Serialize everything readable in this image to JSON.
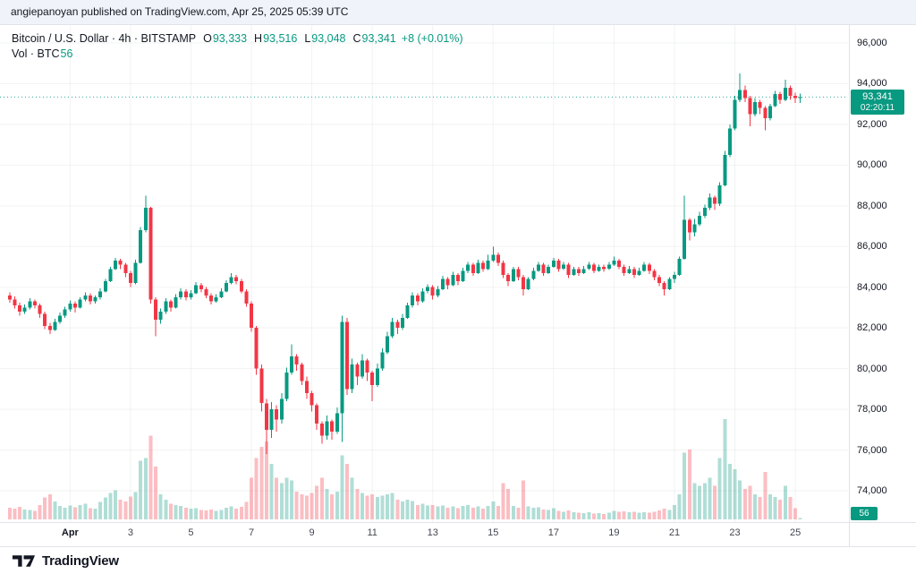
{
  "attribution": {
    "text": "angiepanoyan published on TradingView.com, Apr 25, 2025 05:39 UTC"
  },
  "legend": {
    "title": "Bitcoin / U.S. Dollar · 4h · BITSTAMP",
    "o_label": "O",
    "o_value": "93,333",
    "h_label": "H",
    "h_value": "93,516",
    "l_label": "L",
    "l_value": "93,048",
    "c_label": "C",
    "c_value": "93,341",
    "change": "+8 (+0.01%)",
    "vol_label": "Vol · BTC",
    "vol_value": "56"
  },
  "price_badge": {
    "price": "93,341",
    "countdown": "02:20:11"
  },
  "volume_badge": {
    "value": "56"
  },
  "footer": {
    "brand": "TradingView"
  },
  "colors": {
    "up": "#089981",
    "down": "#f23645",
    "vol_up": "rgba(8,153,129,0.32)",
    "vol_down": "rgba(242,54,69,0.32)",
    "grid": "rgba(42,46,57,0.06)",
    "axis_line": "#e0e3eb",
    "badge": "#089981",
    "attribution_bg": "#f0f3fa"
  },
  "chart_data": {
    "type": "candlestick",
    "title": "Bitcoin / U.S. Dollar",
    "exchange": "BITSTAMP",
    "interval": "4h",
    "price_unit": "USD",
    "volume_unit": "BTC",
    "start_date": "2025-03-30",
    "step_hours": 4,
    "last_candle": {
      "open": 93333,
      "high": 93516,
      "low": 93048,
      "close": 93341,
      "change": 8,
      "change_pct": 0.01,
      "volume": 56
    },
    "price_line_value": 93341,
    "y_axis": {
      "visible_min": 73500,
      "visible_max": 96800,
      "ticks": [
        {
          "label": "96,000",
          "value": 96000
        },
        {
          "label": "94,000",
          "value": 94000
        },
        {
          "label": "92,000",
          "value": 92000
        },
        {
          "label": "90,000",
          "value": 90000
        },
        {
          "label": "88,000",
          "value": 88000
        },
        {
          "label": "86,000",
          "value": 86000
        },
        {
          "label": "84,000",
          "value": 84000
        },
        {
          "label": "82,000",
          "value": 82000
        },
        {
          "label": "80,000",
          "value": 80000
        },
        {
          "label": "78,000",
          "value": 78000
        },
        {
          "label": "76,000",
          "value": 76000
        },
        {
          "label": "74,000",
          "value": 74000
        }
      ]
    },
    "x_axis": {
      "ticks": [
        {
          "label": "Apr",
          "index": 12,
          "month": true
        },
        {
          "label": "3",
          "index": 24
        },
        {
          "label": "5",
          "index": 36
        },
        {
          "label": "7",
          "index": 48
        },
        {
          "label": "9",
          "index": 60
        },
        {
          "label": "11",
          "index": 72
        },
        {
          "label": "13",
          "index": 84
        },
        {
          "label": "15",
          "index": 96
        },
        {
          "label": "17",
          "index": 108
        },
        {
          "label": "19",
          "index": 120
        },
        {
          "label": "21",
          "index": 132
        },
        {
          "label": "23",
          "index": 144
        },
        {
          "label": "25",
          "index": 156
        }
      ]
    },
    "candles_format": [
      "open",
      "high",
      "low",
      "close",
      "volume"
    ],
    "candles": [
      [
        83600,
        83750,
        83250,
        83400,
        420
      ],
      [
        83400,
        83550,
        82950,
        83100,
        380
      ],
      [
        83100,
        83250,
        82600,
        82800,
        450
      ],
      [
        82800,
        83150,
        82700,
        83000,
        360
      ],
      [
        83000,
        83450,
        82900,
        83300,
        340
      ],
      [
        83300,
        83400,
        82950,
        83100,
        300
      ],
      [
        83100,
        83200,
        82500,
        82700,
        520
      ],
      [
        82700,
        82800,
        81950,
        82100,
        780
      ],
      [
        82100,
        82250,
        81700,
        81900,
        900
      ],
      [
        81900,
        82450,
        81850,
        82300,
        640
      ],
      [
        82300,
        82750,
        82200,
        82600,
        480
      ],
      [
        82600,
        83050,
        82500,
        82900,
        420
      ],
      [
        82900,
        83350,
        82800,
        83200,
        500
      ],
      [
        83200,
        83300,
        82750,
        83000,
        440
      ],
      [
        83000,
        83500,
        82950,
        83400,
        520
      ],
      [
        83400,
        83750,
        83300,
        83600,
        560
      ],
      [
        83600,
        83700,
        83150,
        83300,
        400
      ],
      [
        83300,
        83600,
        83200,
        83500,
        380
      ],
      [
        83500,
        83950,
        83400,
        83800,
        620
      ],
      [
        83800,
        84400,
        83750,
        84300,
        780
      ],
      [
        84300,
        85000,
        84250,
        84900,
        950
      ],
      [
        84900,
        85450,
        84850,
        85300,
        1050
      ],
      [
        85300,
        85400,
        84900,
        85100,
        700
      ],
      [
        85100,
        85200,
        84500,
        84700,
        640
      ],
      [
        84700,
        84800,
        84000,
        84200,
        820
      ],
      [
        84200,
        85350,
        84150,
        85200,
        980
      ],
      [
        85200,
        86950,
        85150,
        86800,
        2100
      ],
      [
        86800,
        88500,
        86700,
        87900,
        2200
      ],
      [
        87900,
        87950,
        83200,
        83400,
        3000
      ],
      [
        83400,
        83500,
        81600,
        82400,
        1900
      ],
      [
        82400,
        82950,
        82200,
        82800,
        900
      ],
      [
        82800,
        83450,
        82700,
        83300,
        700
      ],
      [
        83300,
        83400,
        82800,
        83000,
        560
      ],
      [
        83000,
        83650,
        82950,
        83500,
        520
      ],
      [
        83500,
        83950,
        83400,
        83800,
        480
      ],
      [
        83800,
        83900,
        83350,
        83500,
        420
      ],
      [
        83500,
        83850,
        83400,
        83700,
        380
      ],
      [
        83700,
        84250,
        83650,
        84100,
        400
      ],
      [
        84100,
        84200,
        83750,
        83900,
        340
      ],
      [
        83900,
        84000,
        83450,
        83600,
        320
      ],
      [
        83600,
        83700,
        83150,
        83300,
        360
      ],
      [
        83300,
        83650,
        83250,
        83500,
        300
      ],
      [
        83500,
        83950,
        83450,
        83800,
        340
      ],
      [
        83800,
        84350,
        83750,
        84200,
        420
      ],
      [
        84200,
        84700,
        84150,
        84500,
        460
      ],
      [
        84500,
        84600,
        84150,
        84300,
        380
      ],
      [
        84300,
        84400,
        83700,
        83800,
        450
      ],
      [
        83800,
        83900,
        83050,
        83200,
        620
      ],
      [
        83200,
        83300,
        81800,
        82000,
        1500
      ],
      [
        82000,
        82100,
        79700,
        80000,
        2200
      ],
      [
        80000,
        80200,
        77900,
        78300,
        2600
      ],
      [
        78300,
        78500,
        75800,
        77000,
        2800
      ],
      [
        77000,
        78350,
        76600,
        78000,
        2000
      ],
      [
        78000,
        78200,
        76900,
        77500,
        1500
      ],
      [
        77500,
        78800,
        77300,
        78500,
        1300
      ],
      [
        78500,
        80050,
        78400,
        79800,
        1500
      ],
      [
        79800,
        81200,
        79700,
        80600,
        1400
      ],
      [
        80600,
        80700,
        79900,
        80200,
        1000
      ],
      [
        80200,
        80300,
        79200,
        79400,
        900
      ],
      [
        79400,
        79600,
        78500,
        78800,
        850
      ],
      [
        78800,
        78900,
        77900,
        78200,
        950
      ],
      [
        78200,
        78300,
        77000,
        77300,
        1200
      ],
      [
        77300,
        77400,
        76300,
        76700,
        1500
      ],
      [
        76700,
        77700,
        76500,
        77400,
        1100
      ],
      [
        77400,
        77500,
        76500,
        76900,
        900
      ],
      [
        76900,
        78100,
        76800,
        77800,
        1000
      ],
      [
        77800,
        82600,
        76400,
        82300,
        2300
      ],
      [
        82300,
        82500,
        78700,
        79000,
        2000
      ],
      [
        79000,
        80500,
        78800,
        80200,
        1500
      ],
      [
        80200,
        80300,
        79200,
        79600,
        1100
      ],
      [
        79600,
        80700,
        79500,
        80400,
        950
      ],
      [
        80400,
        80500,
        79400,
        79800,
        850
      ],
      [
        79800,
        79900,
        78400,
        79200,
        900
      ],
      [
        79200,
        80250,
        79100,
        80000,
        800
      ],
      [
        80000,
        81000,
        79900,
        80800,
        850
      ],
      [
        80800,
        81800,
        80700,
        81600,
        900
      ],
      [
        81600,
        82500,
        81500,
        82300,
        950
      ],
      [
        82300,
        82400,
        81700,
        82000,
        700
      ],
      [
        82000,
        82700,
        81900,
        82500,
        640
      ],
      [
        82500,
        83250,
        82450,
        83100,
        700
      ],
      [
        83100,
        83750,
        83000,
        83600,
        660
      ],
      [
        83600,
        83700,
        83100,
        83300,
        520
      ],
      [
        83300,
        83950,
        83250,
        83800,
        560
      ],
      [
        83800,
        84150,
        83700,
        84000,
        500
      ],
      [
        84000,
        84100,
        83400,
        83600,
        520
      ],
      [
        83600,
        84050,
        83500,
        83900,
        460
      ],
      [
        83900,
        84550,
        83850,
        84400,
        500
      ],
      [
        84400,
        84500,
        83900,
        84100,
        420
      ],
      [
        84100,
        84750,
        84050,
        84600,
        460
      ],
      [
        84600,
        84700,
        84100,
        84300,
        400
      ],
      [
        84300,
        84950,
        84250,
        84800,
        480
      ],
      [
        84800,
        85250,
        84700,
        85100,
        520
      ],
      [
        85100,
        85200,
        84550,
        84700,
        420
      ],
      [
        84700,
        85350,
        84650,
        85200,
        460
      ],
      [
        85200,
        85300,
        84750,
        84900,
        380
      ],
      [
        84900,
        85600,
        84850,
        85300,
        480
      ],
      [
        85300,
        86000,
        85250,
        85600,
        640
      ],
      [
        85600,
        85700,
        85050,
        85200,
        480
      ],
      [
        85200,
        85300,
        84450,
        84600,
        1300
      ],
      [
        84600,
        84700,
        84050,
        84300,
        1100
      ],
      [
        84300,
        85000,
        84250,
        84900,
        480
      ],
      [
        84900,
        85000,
        84350,
        84500,
        420
      ],
      [
        84500,
        84600,
        83600,
        83900,
        1400
      ],
      [
        83900,
        84500,
        83850,
        84400,
        460
      ],
      [
        84400,
        84950,
        84350,
        84800,
        420
      ],
      [
        84800,
        85250,
        84750,
        85100,
        440
      ],
      [
        85100,
        85200,
        84550,
        84700,
        360
      ],
      [
        84700,
        85100,
        84650,
        85000,
        340
      ],
      [
        85000,
        85450,
        84950,
        85300,
        400
      ],
      [
        85300,
        85400,
        84750,
        84900,
        300
      ],
      [
        84900,
        85250,
        84850,
        85100,
        280
      ],
      [
        85100,
        85200,
        84450,
        84600,
        320
      ],
      [
        84600,
        85000,
        84550,
        84900,
        260
      ],
      [
        84900,
        85000,
        84550,
        84700,
        240
      ],
      [
        84700,
        85050,
        84650,
        84900,
        220
      ],
      [
        84900,
        85250,
        84850,
        85100,
        250
      ],
      [
        85100,
        85200,
        84700,
        84800,
        210
      ],
      [
        84800,
        85100,
        84750,
        85000,
        230
      ],
      [
        85000,
        85100,
        84750,
        84900,
        200
      ],
      [
        84900,
        85250,
        84850,
        85100,
        240
      ],
      [
        85100,
        85500,
        85050,
        85300,
        300
      ],
      [
        85300,
        85400,
        84900,
        85000,
        270
      ],
      [
        85000,
        85100,
        84550,
        84700,
        290
      ],
      [
        84700,
        85050,
        84650,
        84900,
        250
      ],
      [
        84900,
        85000,
        84450,
        84600,
        280
      ],
      [
        84600,
        84950,
        84550,
        84800,
        240
      ],
      [
        84800,
        85250,
        84750,
        85100,
        260
      ],
      [
        85100,
        85200,
        84650,
        84800,
        240
      ],
      [
        84800,
        84900,
        84350,
        84500,
        280
      ],
      [
        84500,
        84600,
        84050,
        84200,
        320
      ],
      [
        84200,
        84300,
        83600,
        83900,
        380
      ],
      [
        83900,
        84500,
        83850,
        84400,
        340
      ],
      [
        84400,
        84750,
        84200,
        84600,
        520
      ],
      [
        84600,
        85500,
        84550,
        85400,
        900
      ],
      [
        85400,
        88500,
        85350,
        87300,
        2400
      ],
      [
        87300,
        87400,
        86300,
        86700,
        2500
      ],
      [
        86700,
        87350,
        86500,
        87100,
        1300
      ],
      [
        87100,
        87700,
        87000,
        87500,
        1200
      ],
      [
        87500,
        88050,
        87400,
        87900,
        1300
      ],
      [
        87900,
        88600,
        87800,
        88400,
        1500
      ],
      [
        88400,
        88500,
        87800,
        88100,
        1200
      ],
      [
        88100,
        89150,
        88000,
        89000,
        2200
      ],
      [
        89000,
        90700,
        88950,
        90500,
        3600
      ],
      [
        90500,
        92000,
        90400,
        91800,
        2000
      ],
      [
        91800,
        93400,
        91700,
        93200,
        1800
      ],
      [
        93200,
        94500,
        93100,
        93700,
        1400
      ],
      [
        93700,
        93900,
        93100,
        93300,
        1100
      ],
      [
        93300,
        93400,
        91900,
        92500,
        1200
      ],
      [
        92500,
        93300,
        92400,
        93100,
        900
      ],
      [
        93100,
        93200,
        92500,
        92800,
        800
      ],
      [
        92800,
        92900,
        91700,
        92300,
        1700
      ],
      [
        92300,
        93000,
        92200,
        92900,
        900
      ],
      [
        92900,
        93650,
        92850,
        93500,
        800
      ],
      [
        93500,
        93600,
        93000,
        93200,
        700
      ],
      [
        93200,
        94200,
        93150,
        93800,
        1200
      ],
      [
        93800,
        93900,
        93200,
        93400,
        800
      ],
      [
        93400,
        93550,
        93050,
        93300,
        400
      ],
      [
        93333,
        93516,
        93048,
        93341,
        56
      ]
    ]
  }
}
